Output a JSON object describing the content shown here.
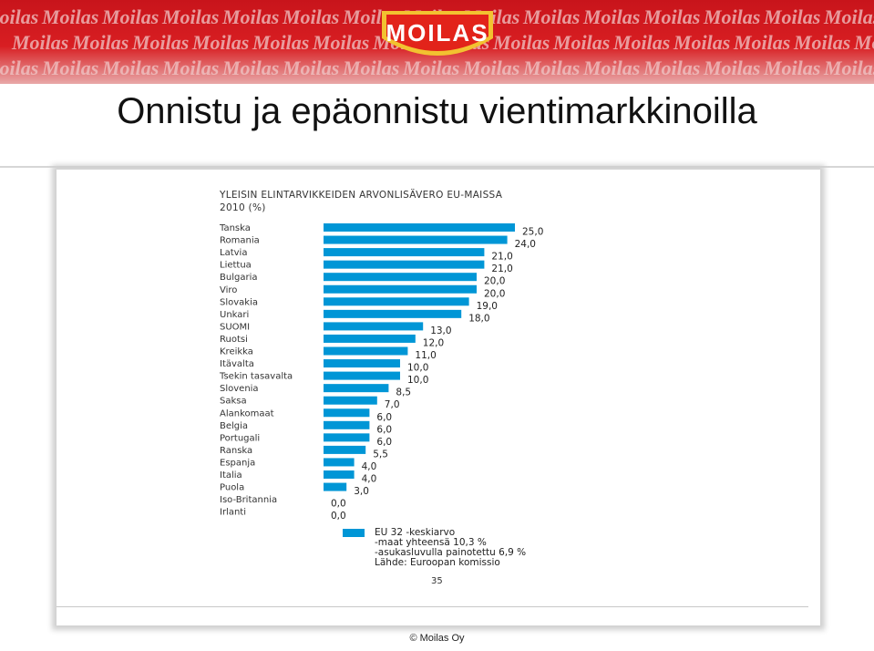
{
  "header": {
    "logo_text": "MOILAS",
    "pattern_word": "Moilas",
    "brand_color": "#d81e22"
  },
  "slide": {
    "title": "Onnistu ja epäonnistu vientimarkkinoilla",
    "page_number": "35",
    "copyright": "© Moilas Oy"
  },
  "chart_data": {
    "type": "bar",
    "orientation": "horizontal",
    "title_lines": [
      "YLEISIN ELINTARVIKKEIDEN ARVONLISÄVERO EU-MAISSA",
      "2010 (%)"
    ],
    "categories": [
      "Tanska",
      "Romania",
      "Latvia",
      "Liettua",
      "Bulgaria",
      "Viro",
      "Slovakia",
      "Unkari",
      "SUOMI",
      "Ruotsi",
      "Kreikka",
      "Itävalta",
      "Tsekin tasavalta",
      "Slovenia",
      "Saksa",
      "Alankomaat",
      "Belgia",
      "Portugali",
      "Ranska",
      "Espanja",
      "Italia",
      "Puola",
      "Iso-Britannia",
      "Irlanti"
    ],
    "values": [
      25.0,
      24.0,
      21.0,
      21.0,
      20.0,
      20.0,
      19.0,
      18.0,
      13.0,
      12.0,
      11.0,
      10.0,
      10.0,
      8.5,
      7.0,
      6.0,
      6.0,
      6.0,
      5.5,
      4.0,
      4.0,
      3.0,
      0.0,
      0.0
    ],
    "value_labels": [
      "25,0",
      "24,0",
      "21,0",
      "21,0",
      "20,0",
      "20,0",
      "19,0",
      "18,0",
      "13,0",
      "12,0",
      "11,0",
      "10,0",
      "10,0",
      "8,5",
      "7,0",
      "6,0",
      "6,0",
      "6,0",
      "5,5",
      "4,0",
      "4,0",
      "3,0",
      "0,0",
      "0,0"
    ],
    "bar_color": "#0096d6",
    "grid": false,
    "legend_position": "bottom",
    "legend": {
      "lines": [
        "EU 32 -keskiarvo",
        "-maat yhteensä 10,3 %",
        "-asukasluvulla painotettu 6,9 %",
        "Lähde: Euroopan komissio"
      ]
    }
  }
}
